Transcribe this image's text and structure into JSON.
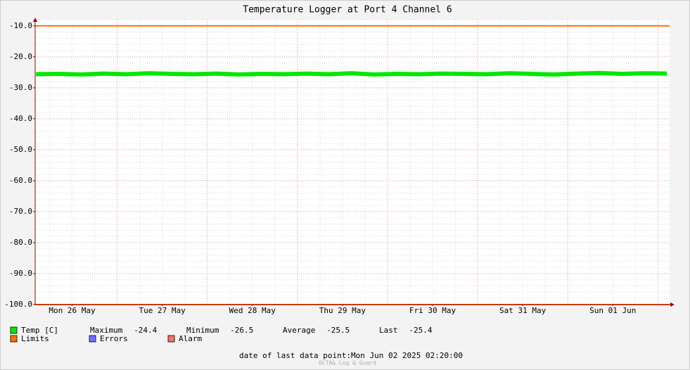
{
  "chart_data": {
    "type": "line",
    "title": "Temperature Logger at Port 4 Channel 6",
    "ylim": [
      -100,
      -8
    ],
    "yticks": [
      {
        "value": -100,
        "label": "-100.0"
      },
      {
        "value": -90,
        "label": "-90.0"
      },
      {
        "value": -80,
        "label": "-80.0"
      },
      {
        "value": -70,
        "label": "-70.0"
      },
      {
        "value": -60,
        "label": "-60.0"
      },
      {
        "value": -50,
        "label": "-50.0"
      },
      {
        "value": -40,
        "label": "-40.0"
      },
      {
        "value": -30,
        "label": "-30.0"
      },
      {
        "value": -20,
        "label": "-20.0"
      },
      {
        "value": -10,
        "label": "-10.0"
      }
    ],
    "xlim": [
      0.09,
      7.13
    ],
    "xticks": [
      {
        "value": 0.5,
        "label": "Mon 26 May"
      },
      {
        "value": 1.5,
        "label": "Tue 27 May"
      },
      {
        "value": 2.5,
        "label": "Wed 28 May"
      },
      {
        "value": 3.5,
        "label": "Thu 29 May"
      },
      {
        "value": 4.5,
        "label": "Fri 30 May"
      },
      {
        "value": 5.5,
        "label": "Sat 31 May"
      },
      {
        "value": 6.5,
        "label": "Sun 01 Jun"
      }
    ],
    "grid": true,
    "series": [
      {
        "name": "Temp [C]",
        "color": "#00e800",
        "x": [
          0.1,
          0.35,
          0.6,
          0.85,
          1.1,
          1.35,
          1.6,
          1.85,
          2.1,
          2.35,
          2.6,
          2.85,
          3.1,
          3.35,
          3.6,
          3.85,
          4.1,
          4.35,
          4.6,
          4.85,
          5.1,
          5.35,
          5.6,
          5.85,
          6.1,
          6.35,
          6.6,
          6.85,
          7.1
        ],
        "values": [
          -25.6,
          -25.5,
          -25.7,
          -25.4,
          -25.6,
          -25.3,
          -25.5,
          -25.6,
          -25.4,
          -25.7,
          -25.5,
          -25.6,
          -25.4,
          -25.6,
          -25.3,
          -25.7,
          -25.5,
          -25.6,
          -25.4,
          -25.5,
          -25.6,
          -25.3,
          -25.5,
          -25.7,
          -25.4,
          -25.2,
          -25.5,
          -25.3,
          -25.4
        ]
      }
    ],
    "stats": [
      {
        "label": "Maximum",
        "value": -24.4
      },
      {
        "label": "Minimum",
        "value": -26.5
      },
      {
        "label": "Average",
        "value": -25.5
      },
      {
        "label": "Last",
        "value": -25.4
      }
    ],
    "limits": {
      "name": "Limits",
      "color": "#ff7000",
      "values": [
        -10,
        -100
      ]
    },
    "legend_extra": [
      {
        "name": "Errors",
        "color": "#7070ff"
      },
      {
        "name": "Alarm",
        "color": "#ff7070"
      }
    ],
    "footer_label": "date of last data point:",
    "footer_value": "Mon Jun 02 2025 02:20:00",
    "watermark": "OCTA& Log & Guard"
  }
}
